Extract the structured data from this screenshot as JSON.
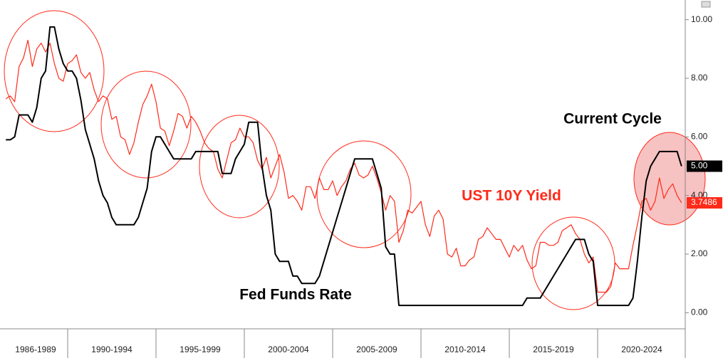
{
  "chart_data": {
    "type": "line",
    "periods": [
      "1986-1989",
      "1990-1994",
      "1995-1999",
      "2000-2004",
      "2005-2009",
      "2010-2014",
      "2015-2019",
      "2020-2024"
    ],
    "annotations": [
      "Current Cycle",
      "UST 10Y Yield",
      "Fed Funds Rate"
    ],
    "ylim": [
      -0.55,
      10.55
    ],
    "yticks": [
      {
        "value": 0,
        "label": "0.00"
      },
      {
        "value": 2,
        "label": "2.00"
      },
      {
        "value": 4,
        "label": "4.00"
      },
      {
        "value": 6,
        "label": "6.00"
      },
      {
        "value": 8,
        "label": "8.00"
      },
      {
        "value": 10,
        "label": "10.00"
      }
    ],
    "series": [
      {
        "name": "Fed Funds Rate",
        "color": "#000000",
        "last_value_label": "5.00",
        "values": [
          5.9,
          5.9,
          6.0,
          6.75,
          6.75,
          6.75,
          6.5,
          7.0,
          8.0,
          8.25,
          9.75,
          9.75,
          9.0,
          8.5,
          8.25,
          8.25,
          8.0,
          7.25,
          6.25,
          5.75,
          5.25,
          4.5,
          4.0,
          3.75,
          3.25,
          3.0,
          3.0,
          3.0,
          3.0,
          3.0,
          3.25,
          3.75,
          4.25,
          5.5,
          6.0,
          6.0,
          5.75,
          5.5,
          5.25,
          5.25,
          5.25,
          5.25,
          5.25,
          5.5,
          5.5,
          5.5,
          5.5,
          5.5,
          5.5,
          4.75,
          4.75,
          4.75,
          5.25,
          5.5,
          5.75,
          6.5,
          6.5,
          6.5,
          5.0,
          4.0,
          3.5,
          2.0,
          1.75,
          1.75,
          1.75,
          1.25,
          1.25,
          1.0,
          1.0,
          1.0,
          1.0,
          1.25,
          1.75,
          2.25,
          2.75,
          3.25,
          3.75,
          4.25,
          4.75,
          5.25,
          5.25,
          5.25,
          5.25,
          5.25,
          4.75,
          4.25,
          2.25,
          2.0,
          2.0,
          0.25,
          0.25,
          0.25,
          0.25,
          0.25,
          0.25,
          0.25,
          0.25,
          0.25,
          0.25,
          0.25,
          0.25,
          0.25,
          0.25,
          0.25,
          0.25,
          0.25,
          0.25,
          0.25,
          0.25,
          0.25,
          0.25,
          0.25,
          0.25,
          0.25,
          0.25,
          0.25,
          0.25,
          0.25,
          0.5,
          0.5,
          0.5,
          0.5,
          0.75,
          1.0,
          1.25,
          1.5,
          1.75,
          2.0,
          2.25,
          2.5,
          2.5,
          2.5,
          2.0,
          1.75,
          0.25,
          0.25,
          0.25,
          0.25,
          0.25,
          0.25,
          0.25,
          0.25,
          0.5,
          1.75,
          3.25,
          4.5,
          5.0,
          5.25,
          5.5,
          5.5,
          5.5,
          5.5,
          5.5,
          5.0
        ]
      },
      {
        "name": "UST 10Y Yield",
        "color": "#ff2a1a",
        "last_value_label": "3.7486",
        "values": [
          7.3,
          7.4,
          7.2,
          8.4,
          8.7,
          9.3,
          8.4,
          9.0,
          9.2,
          8.9,
          9.2,
          8.5,
          8.0,
          7.9,
          8.5,
          8.6,
          8.8,
          8.2,
          8.0,
          8.2,
          7.6,
          7.2,
          7.4,
          7.3,
          6.6,
          6.7,
          6.0,
          5.9,
          5.4,
          5.8,
          6.5,
          7.1,
          7.4,
          7.8,
          7.2,
          6.3,
          6.2,
          5.7,
          6.2,
          6.8,
          6.7,
          6.3,
          6.7,
          6.5,
          6.2,
          5.8,
          5.6,
          5.5,
          4.9,
          4.6,
          5.2,
          5.8,
          5.9,
          6.3,
          6.0,
          6.0,
          5.8,
          5.2,
          4.9,
          5.3,
          4.6,
          5.0,
          5.4,
          4.8,
          3.9,
          4.0,
          3.8,
          3.5,
          4.3,
          4.3,
          3.9,
          4.6,
          4.2,
          4.2,
          4.5,
          4.0,
          4.3,
          4.5,
          4.9,
          5.1,
          4.7,
          4.6,
          4.7,
          5.0,
          4.6,
          4.1,
          3.5,
          4.0,
          3.8,
          2.4,
          2.8,
          3.5,
          3.4,
          3.6,
          3.8,
          3.0,
          2.6,
          3.3,
          3.5,
          3.2,
          2.0,
          1.9,
          2.2,
          1.6,
          1.6,
          1.8,
          1.9,
          2.5,
          2.6,
          2.9,
          2.7,
          2.5,
          2.5,
          2.2,
          1.9,
          2.3,
          2.1,
          2.3,
          1.8,
          1.5,
          1.6,
          2.4,
          2.4,
          2.3,
          2.3,
          2.4,
          2.8,
          2.9,
          3.0,
          2.7,
          2.5,
          2.0,
          1.7,
          1.9,
          0.7,
          0.7,
          0.7,
          0.9,
          1.7,
          1.5,
          1.5,
          1.5,
          2.3,
          3.0,
          3.8,
          3.9,
          3.5,
          3.8,
          4.6,
          3.9,
          4.2,
          4.4,
          4.0,
          3.7486
        ]
      }
    ]
  }
}
